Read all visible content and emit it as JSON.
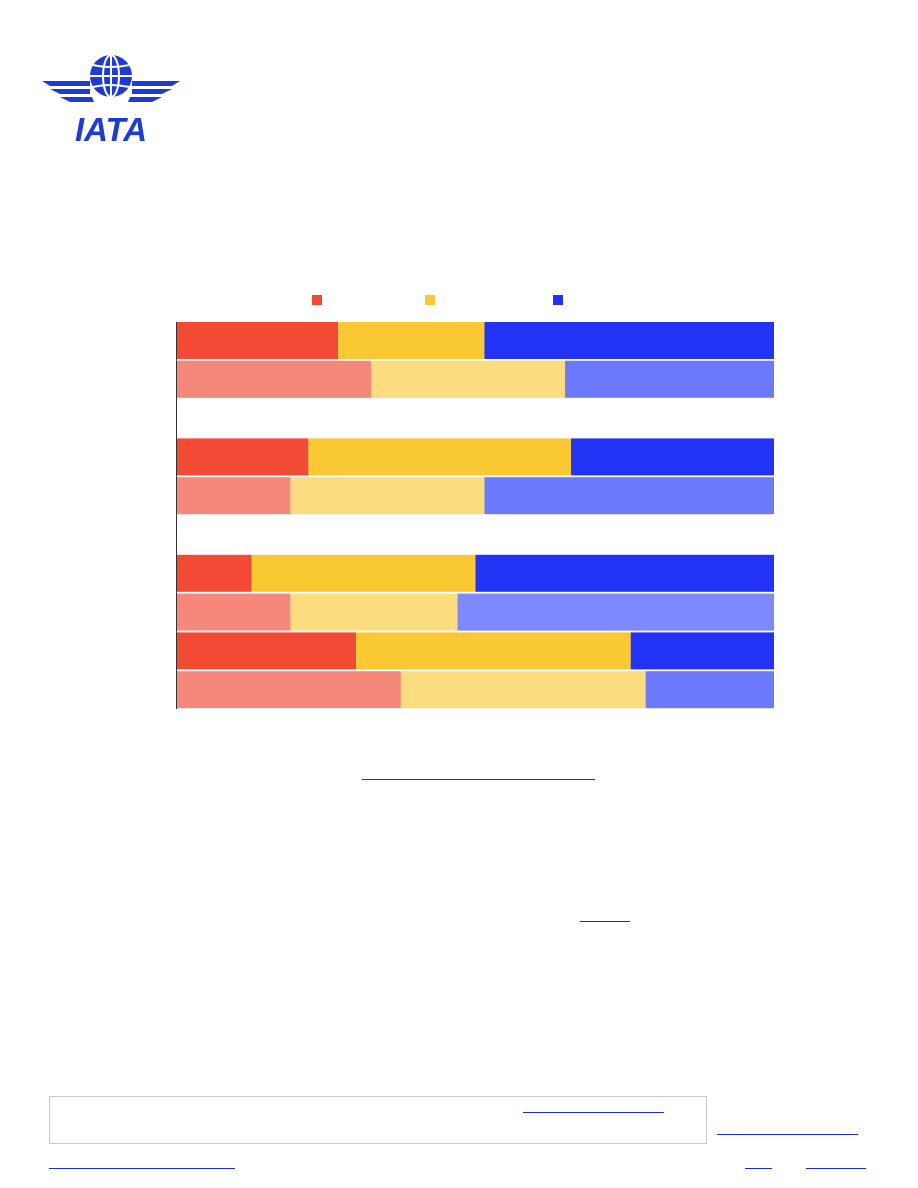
{
  "header": {
    "logo_text": "IATA"
  },
  "colors": {
    "logo_blue": "#1e3bd4",
    "red": "#f24a35",
    "red_light": "#f6887b",
    "yellow": "#f9c832",
    "yellow_light": "#fbdc7e",
    "blue": "#2233f5",
    "blue_light": "#6c79fb",
    "blue_lighter": "#7d89fc",
    "link": "#1a2bd8"
  },
  "chart_data": {
    "type": "bar",
    "orientation": "horizontal",
    "stacked": true,
    "normalized_percent": true,
    "title": "",
    "xlabel": "",
    "ylabel": "",
    "xlim": [
      0,
      100
    ],
    "legend_position": "top",
    "series": [
      {
        "name": "",
        "color": "#f24a35"
      },
      {
        "name": "",
        "color": "#f9c832"
      },
      {
        "name": "",
        "color": "#2233f5"
      }
    ],
    "rows": [
      {
        "label": "",
        "values": [
          27,
          24.5,
          48.5
        ],
        "colors": [
          "#f24a35",
          "#f9c832",
          "#2233f5"
        ]
      },
      {
        "label": "",
        "values": [
          32.5,
          32.5,
          35
        ],
        "colors": [
          "#f6887b",
          "#fbdc7e",
          "#6c79fb"
        ]
      },
      {
        "label": "",
        "values": [
          0,
          0,
          0
        ],
        "colors": [
          "#f24a35",
          "#f9c832",
          "#2233f5"
        ]
      },
      {
        "label": "",
        "values": [
          22,
          44,
          34
        ],
        "colors": [
          "#f24a35",
          "#f9c832",
          "#2233f5"
        ]
      },
      {
        "label": "",
        "values": [
          19,
          32.5,
          48.5
        ],
        "colors": [
          "#f6887b",
          "#fbdc7e",
          "#6c79fb"
        ]
      },
      {
        "label": "",
        "values": [
          0,
          0,
          0
        ],
        "colors": [
          "#f24a35",
          "#f9c832",
          "#2233f5"
        ]
      },
      {
        "label": "",
        "values": [
          12.5,
          37.5,
          50
        ],
        "colors": [
          "#f24a35",
          "#f9c832",
          "#2233f5"
        ]
      },
      {
        "label": "",
        "values": [
          19,
          28,
          53
        ],
        "colors": [
          "#f6887b",
          "#fbdc7e",
          "#7d89fc"
        ]
      },
      {
        "label": "",
        "values": [
          30,
          46,
          24
        ],
        "colors": [
          "#f24a35",
          "#f9c832",
          "#2233f5"
        ]
      },
      {
        "label": "",
        "values": [
          37.5,
          41,
          21.5
        ],
        "colors": [
          "#f6887b",
          "#fbdc7e",
          "#6c79fb"
        ]
      }
    ]
  }
}
